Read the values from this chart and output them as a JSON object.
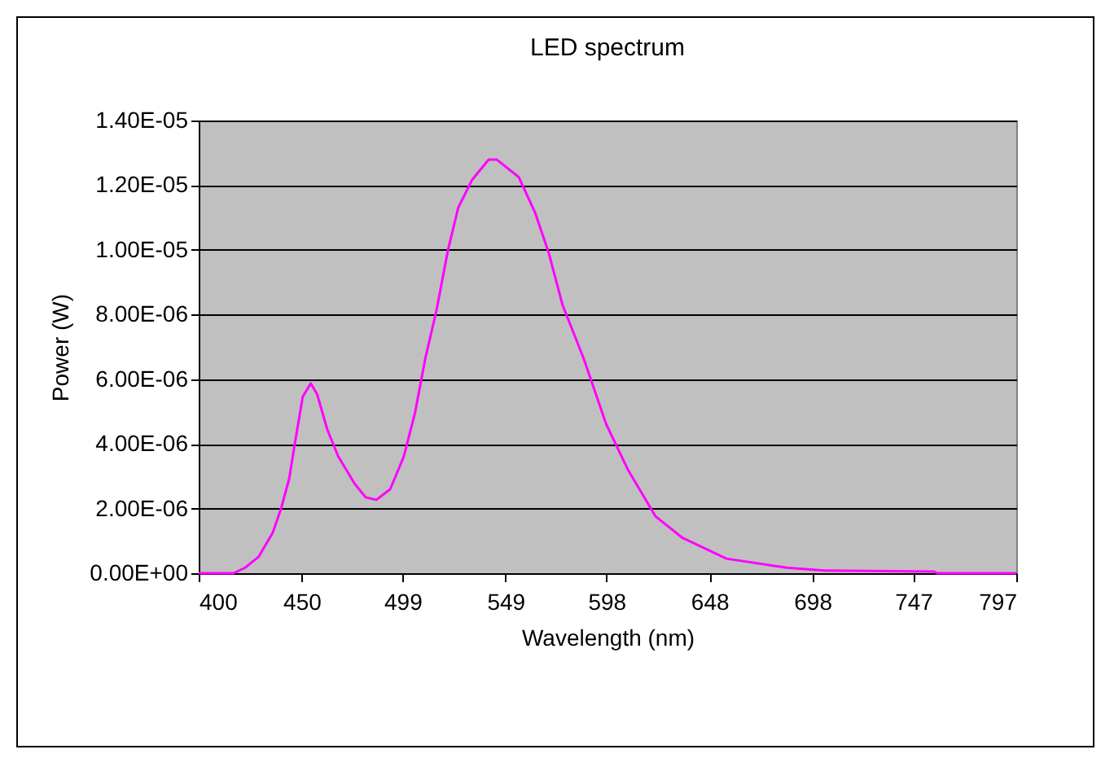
{
  "chart_data": {
    "type": "line",
    "title": "LED spectrum",
    "xlabel": "Wavelength (nm)",
    "ylabel": "Power (W)",
    "x": [
      400,
      417,
      422.5,
      429,
      436,
      440,
      444,
      446.5,
      450.5,
      454.4,
      457.5,
      462.4,
      467.7,
      475.7,
      481,
      486.3,
      493,
      499.6,
      505,
      510,
      515.5,
      521,
      526,
      532.8,
      540.8,
      544.8,
      555.4,
      563.3,
      570,
      576.6,
      587,
      597.8,
      608.5,
      621.8,
      635,
      656.3,
      685.5,
      704,
      757,
      758.6,
      797
    ],
    "series": [
      {
        "color": "#ff00ff",
        "values": [
          0,
          0,
          1.7e-07,
          5e-07,
          1.26e-06,
          2e-06,
          2.94e-06,
          3.94e-06,
          5.45e-06,
          5.87e-06,
          5.54e-06,
          4.45e-06,
          3.62e-06,
          2.77e-06,
          2.35e-06,
          2.27e-06,
          2.6e-06,
          3.61e-06,
          4.95e-06,
          6.63e-06,
          8.14e-06,
          9.98e-06,
          1.13e-05,
          1.217e-05,
          1.279e-05,
          1.279e-05,
          1.225e-05,
          1.116e-05,
          9.9e-06,
          8.31e-06,
          6.63e-06,
          4.62e-06,
          3.19e-06,
          1.76e-06,
          1.09e-06,
          4.5e-07,
          1.7e-07,
          8e-08,
          5e-08,
          0,
          0
        ]
      }
    ],
    "xlim": [
      400,
      797
    ],
    "xticks": [
      400,
      450,
      499,
      549,
      598,
      648,
      698,
      747,
      797
    ],
    "ylim": [
      0,
      1.4e-05
    ],
    "yticks": [
      {
        "value": 0,
        "label": "0.00E+00"
      },
      {
        "value": 2e-06,
        "label": "2.00E-06"
      },
      {
        "value": 4e-06,
        "label": "4.00E-06"
      },
      {
        "value": 6e-06,
        "label": "6.00E-06"
      },
      {
        "value": 8e-06,
        "label": "8.00E-06"
      },
      {
        "value": 1e-05,
        "label": "1.00E-05"
      },
      {
        "value": 1.2e-05,
        "label": "1.20E-05"
      },
      {
        "value": 1.4e-05,
        "label": "1.40E-05"
      }
    ],
    "grid": "y",
    "legend": false,
    "marker": "none",
    "line_style": "solid"
  }
}
